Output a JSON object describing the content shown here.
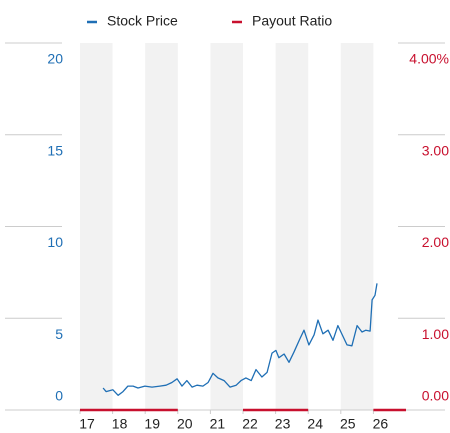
{
  "chart_data": {
    "type": "line",
    "xlim": [
      2017,
      2027
    ],
    "xticks": [
      {
        "value": 2017,
        "label": "17"
      },
      {
        "value": 2018,
        "label": "18"
      },
      {
        "value": 2019,
        "label": "19"
      },
      {
        "value": 2020,
        "label": "20"
      },
      {
        "value": 2021,
        "label": "21"
      },
      {
        "value": 2022,
        "label": "22"
      },
      {
        "value": 2023,
        "label": "23"
      },
      {
        "value": 2024,
        "label": "24"
      },
      {
        "value": 2025,
        "label": "25"
      },
      {
        "value": 2026,
        "label": "26"
      }
    ],
    "ylim": [
      0,
      20
    ],
    "yticks": [
      0,
      5,
      10,
      15,
      20
    ],
    "y2lim": [
      0,
      4
    ],
    "y2ticks": [
      {
        "value": 0,
        "label": "0.00"
      },
      {
        "value": 1,
        "label": "1.00"
      },
      {
        "value": 2,
        "label": "2.00"
      },
      {
        "value": 3,
        "label": "3.00"
      },
      {
        "value": 4,
        "label": "4.00%"
      }
    ],
    "series": [
      {
        "name": "Stock Price",
        "color": "#1f6fb5",
        "x": [
          2017.71,
          2017.8,
          2018.01,
          2018.17,
          2018.32,
          2018.47,
          2018.63,
          2018.78,
          2018.99,
          2019.21,
          2019.45,
          2019.64,
          2019.82,
          2019.98,
          2020.13,
          2020.28,
          2020.44,
          2020.59,
          2020.77,
          2020.93,
          2021.08,
          2021.23,
          2021.42,
          2021.6,
          2021.79,
          2021.94,
          2022.09,
          2022.25,
          2022.4,
          2022.58,
          2022.74,
          2022.89,
          2023.01,
          2023.1,
          2023.26,
          2023.41,
          2023.56,
          2023.75,
          2023.87,
          2024.02,
          2024.18,
          2024.3,
          2024.45,
          2024.61,
          2024.76,
          2024.91,
          2025.07,
          2025.19,
          2025.34,
          2025.5,
          2025.65,
          2025.77,
          2025.9,
          2025.96,
          2026.05,
          2026.11
        ],
        "values": [
          1.2,
          1.0,
          1.1,
          0.8,
          1.0,
          1.3,
          1.3,
          1.2,
          1.3,
          1.25,
          1.3,
          1.35,
          1.5,
          1.7,
          1.3,
          1.6,
          1.25,
          1.35,
          1.3,
          1.5,
          2.0,
          1.75,
          1.6,
          1.25,
          1.35,
          1.6,
          1.75,
          1.6,
          2.2,
          1.8,
          2.05,
          3.1,
          3.25,
          2.85,
          3.05,
          2.6,
          3.15,
          3.9,
          4.35,
          3.55,
          4.1,
          4.9,
          4.15,
          4.35,
          3.8,
          4.6,
          4.0,
          3.55,
          3.5,
          4.6,
          4.25,
          4.35,
          4.3,
          6.0,
          6.25,
          6.9
        ]
      },
      {
        "name": "Payout Ratio",
        "color": "#c8102e",
        "axis": "y2",
        "x": [
          2017,
          2020,
          2021,
          2022,
          2024,
          2025,
          2026,
          2027
        ],
        "values": [
          0,
          0,
          null,
          0,
          0,
          null,
          0,
          0
        ]
      }
    ]
  }
}
